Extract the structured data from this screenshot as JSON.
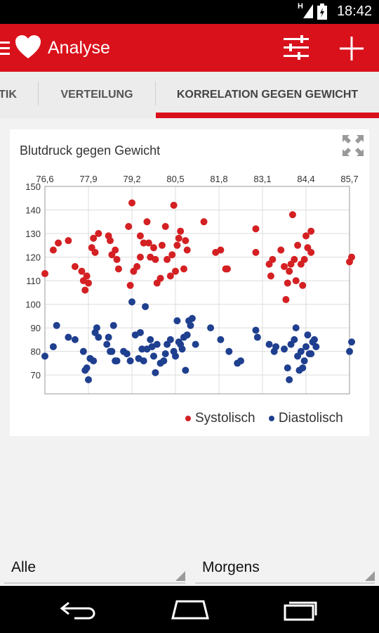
{
  "status": {
    "network": "H",
    "time": "18:42"
  },
  "toolbar": {
    "title": "Analyse",
    "menu_icon": "hamburger-icon",
    "logo_icon": "heart-icon",
    "filter_icon": "sliders-icon",
    "add_icon": "plus-icon"
  },
  "tabs": [
    {
      "label": "TIK",
      "selected": false
    },
    {
      "label": "VERTEILUNG",
      "selected": false
    },
    {
      "label": "KORRELATION GEGEN GEWICHT",
      "selected": true
    }
  ],
  "colors": {
    "accent": "#d9111b",
    "systolic": "#d42023",
    "diastolic": "#1f3f8f"
  },
  "card": {
    "title": "Blutdruck gegen Gewicht",
    "expand_icon": "fullscreen-icon"
  },
  "chart_data": {
    "type": "scatter",
    "title": "Blutdruck gegen Gewicht",
    "x_ticks": [
      "76,6",
      "77,9",
      "79,2",
      "80,5",
      "81,8",
      "83,1",
      "84,4",
      "85,7"
    ],
    "y_ticks": [
      "150",
      "140",
      "130",
      "120",
      "110",
      "100",
      "90",
      "80",
      "70"
    ],
    "xlim": [
      76.6,
      85.7
    ],
    "ylim": [
      62,
      150
    ],
    "grid": true,
    "legend_position": "bottom-right",
    "series": [
      {
        "name": "Systolisch",
        "color": "#d42023",
        "points": [
          [
            76.6,
            113
          ],
          [
            76.85,
            123
          ],
          [
            77.0,
            126
          ],
          [
            77.3,
            127
          ],
          [
            77.5,
            116
          ],
          [
            77.7,
            114
          ],
          [
            77.75,
            110
          ],
          [
            77.8,
            106
          ],
          [
            77.85,
            112
          ],
          [
            77.9,
            109
          ],
          [
            78.0,
            124
          ],
          [
            78.05,
            128
          ],
          [
            78.1,
            122
          ],
          [
            78.2,
            130
          ],
          [
            78.5,
            129
          ],
          [
            78.55,
            127
          ],
          [
            78.6,
            121
          ],
          [
            78.7,
            123
          ],
          [
            78.75,
            119
          ],
          [
            78.8,
            115
          ],
          [
            79.1,
            133
          ],
          [
            79.2,
            143
          ],
          [
            79.15,
            108
          ],
          [
            79.25,
            114
          ],
          [
            79.35,
            116
          ],
          [
            79.45,
            120
          ],
          [
            79.45,
            129
          ],
          [
            79.55,
            126
          ],
          [
            79.65,
            135
          ],
          [
            79.7,
            126
          ],
          [
            79.75,
            120
          ],
          [
            79.85,
            124
          ],
          [
            79.9,
            119
          ],
          [
            79.95,
            109
          ],
          [
            80.05,
            111
          ],
          [
            80.1,
            125
          ],
          [
            80.2,
            133
          ],
          [
            80.25,
            119
          ],
          [
            80.35,
            112
          ],
          [
            80.4,
            121
          ],
          [
            80.45,
            142
          ],
          [
            80.5,
            114
          ],
          [
            80.55,
            125
          ],
          [
            80.6,
            128
          ],
          [
            80.65,
            131
          ],
          [
            80.75,
            115
          ],
          [
            80.85,
            123
          ],
          [
            80.8,
            127
          ],
          [
            81.35,
            135
          ],
          [
            81.7,
            122
          ],
          [
            81.85,
            123
          ],
          [
            82.0,
            115
          ],
          [
            82.05,
            115
          ],
          [
            82.9,
            132
          ],
          [
            82.9,
            122
          ],
          [
            83.3,
            117
          ],
          [
            83.35,
            112
          ],
          [
            83.4,
            119
          ],
          [
            83.65,
            123
          ],
          [
            83.75,
            116
          ],
          [
            83.8,
            102
          ],
          [
            83.85,
            109
          ],
          [
            83.9,
            114
          ],
          [
            83.95,
            117
          ],
          [
            84.0,
            138
          ],
          [
            84.05,
            119
          ],
          [
            84.1,
            110
          ],
          [
            84.15,
            125
          ],
          [
            84.25,
            117
          ],
          [
            84.3,
            108
          ],
          [
            84.35,
            119
          ],
          [
            84.4,
            129
          ],
          [
            84.45,
            124
          ],
          [
            84.55,
            131
          ],
          [
            84.55,
            122
          ],
          [
            85.7,
            118
          ],
          [
            85.8,
            120
          ]
        ]
      },
      {
        "name": "Diastolisch",
        "color": "#1f3f8f",
        "points": [
          [
            76.6,
            78
          ],
          [
            76.85,
            82
          ],
          [
            76.95,
            91
          ],
          [
            77.3,
            86
          ],
          [
            77.5,
            85
          ],
          [
            77.75,
            80
          ],
          [
            77.8,
            72
          ],
          [
            77.85,
            73
          ],
          [
            77.9,
            68
          ],
          [
            77.95,
            77
          ],
          [
            78.05,
            76
          ],
          [
            78.1,
            88
          ],
          [
            78.15,
            90
          ],
          [
            78.2,
            86
          ],
          [
            78.45,
            83
          ],
          [
            78.5,
            86
          ],
          [
            78.55,
            80
          ],
          [
            78.6,
            80
          ],
          [
            78.65,
            91
          ],
          [
            78.7,
            76
          ],
          [
            78.75,
            76
          ],
          [
            78.95,
            80
          ],
          [
            79.05,
            79
          ],
          [
            79.15,
            76
          ],
          [
            79.2,
            101
          ],
          [
            79.3,
            87
          ],
          [
            79.4,
            77
          ],
          [
            79.45,
            88
          ],
          [
            79.5,
            81
          ],
          [
            79.55,
            76
          ],
          [
            79.6,
            99
          ],
          [
            79.65,
            81
          ],
          [
            79.75,
            85
          ],
          [
            79.8,
            82
          ],
          [
            79.85,
            78
          ],
          [
            79.9,
            71
          ],
          [
            79.95,
            83
          ],
          [
            80.05,
            75
          ],
          [
            80.15,
            76
          ],
          [
            80.2,
            79
          ],
          [
            80.25,
            83
          ],
          [
            80.35,
            85
          ],
          [
            80.45,
            80
          ],
          [
            80.5,
            78
          ],
          [
            80.55,
            93
          ],
          [
            80.6,
            84
          ],
          [
            80.65,
            83
          ],
          [
            80.7,
            81
          ],
          [
            80.75,
            86
          ],
          [
            80.8,
            72
          ],
          [
            80.85,
            87
          ],
          [
            80.9,
            93
          ],
          [
            80.95,
            91
          ],
          [
            81.0,
            94
          ],
          [
            81.1,
            83
          ],
          [
            81.55,
            90
          ],
          [
            81.85,
            85
          ],
          [
            82.1,
            80
          ],
          [
            82.35,
            75
          ],
          [
            82.45,
            76
          ],
          [
            82.9,
            89
          ],
          [
            82.95,
            86
          ],
          [
            83.3,
            83
          ],
          [
            83.45,
            80
          ],
          [
            83.5,
            82
          ],
          [
            83.75,
            81
          ],
          [
            83.85,
            73
          ],
          [
            83.9,
            68
          ],
          [
            83.95,
            83
          ],
          [
            84.05,
            85
          ],
          [
            84.1,
            90
          ],
          [
            84.15,
            78
          ],
          [
            84.2,
            72
          ],
          [
            84.25,
            80
          ],
          [
            84.3,
            73
          ],
          [
            84.35,
            76
          ],
          [
            84.4,
            82
          ],
          [
            84.45,
            87
          ],
          [
            84.5,
            79
          ],
          [
            84.55,
            79
          ],
          [
            84.6,
            84
          ],
          [
            84.65,
            85
          ],
          [
            84.7,
            82
          ],
          [
            85.7,
            80
          ],
          [
            85.8,
            84
          ]
        ]
      }
    ]
  },
  "legend": {
    "systolic": "Systolisch",
    "diastolic": "Diastolisch"
  },
  "spinners": {
    "left": "Alle",
    "right": "Morgens"
  },
  "navbar": {
    "back_icon": "back-icon",
    "home_icon": "home-icon",
    "recents_icon": "recents-icon"
  }
}
